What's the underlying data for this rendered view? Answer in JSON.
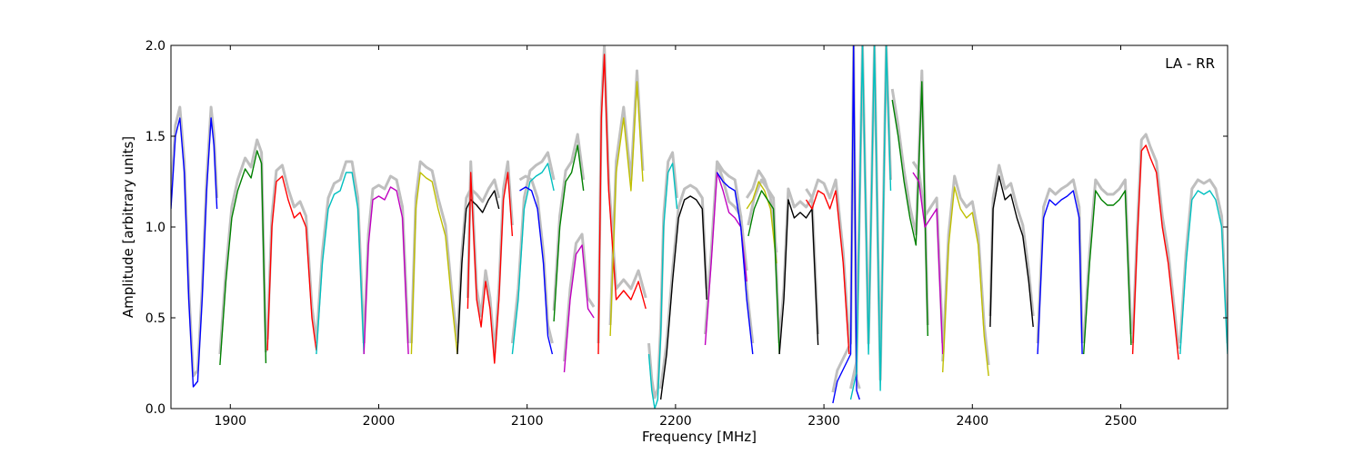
{
  "chart_data": {
    "type": "line",
    "title": "",
    "xlabel": "Frequency [MHz]",
    "ylabel": "Amplitude [arbitrary units]",
    "annotation": "LA - RR",
    "xlim": [
      1860,
      2572
    ],
    "ylim": [
      0.0,
      2.0
    ],
    "xticks": [
      1900,
      2000,
      2100,
      2200,
      2300,
      2400,
      2500
    ],
    "yticks": [
      0.0,
      0.5,
      1.0,
      1.5,
      2.0
    ],
    "xtick_labels": [
      "1900",
      "2000",
      "2100",
      "2200",
      "2300",
      "2400",
      "2500"
    ],
    "ytick_labels": [
      "0.0",
      "0.5",
      "1.0",
      "1.5",
      "2.0"
    ],
    "grid": false,
    "legend": "none",
    "raw_color": "#bfbfbf",
    "series": [
      {
        "color": "#0000ff",
        "x": [
          1860,
          1863,
          1866,
          1869,
          1872,
          1875,
          1878,
          1881,
          1884,
          1887,
          1889,
          1891
        ],
        "y": [
          1.1,
          1.5,
          1.6,
          1.3,
          0.6,
          0.12,
          0.15,
          0.6,
          1.2,
          1.6,
          1.45,
          1.1
        ]
      },
      {
        "color": "#008000",
        "x": [
          1893,
          1897,
          1901,
          1905,
          1910,
          1914,
          1918,
          1921,
          1924
        ],
        "y": [
          0.24,
          0.7,
          1.05,
          1.2,
          1.32,
          1.27,
          1.42,
          1.35,
          0.25
        ]
      },
      {
        "color": "#ff0000",
        "x": [
          1925,
          1928,
          1931,
          1935,
          1939,
          1943,
          1947,
          1951,
          1955,
          1958
        ],
        "y": [
          0.32,
          1.0,
          1.25,
          1.28,
          1.15,
          1.05,
          1.08,
          1.0,
          0.5,
          0.32
        ]
      },
      {
        "color": "#00bfbf",
        "x": [
          1958,
          1962,
          1966,
          1970,
          1974,
          1978,
          1982,
          1986,
          1990
        ],
        "y": [
          0.3,
          0.8,
          1.1,
          1.18,
          1.2,
          1.3,
          1.3,
          1.1,
          0.3
        ]
      },
      {
        "color": "#bf00bf",
        "x": [
          1990,
          1993,
          1996,
          2000,
          2004,
          2008,
          2012,
          2016,
          2020
        ],
        "y": [
          0.3,
          0.9,
          1.15,
          1.17,
          1.15,
          1.22,
          1.2,
          1.05,
          0.3
        ]
      },
      {
        "color": "#bfbf00",
        "x": [
          2022,
          2025,
          2028,
          2032,
          2036,
          2040,
          2045,
          2049,
          2053
        ],
        "y": [
          0.3,
          1.1,
          1.3,
          1.27,
          1.25,
          1.1,
          0.95,
          0.6,
          0.3
        ]
      },
      {
        "color": "#000000",
        "x": [
          2053,
          2056,
          2059,
          2062,
          2066,
          2070,
          2074,
          2078,
          2081
        ],
        "y": [
          0.3,
          0.8,
          1.1,
          1.15,
          1.12,
          1.08,
          1.15,
          1.2,
          1.1
        ]
      },
      {
        "color": "#ff0000",
        "x": [
          2060,
          2062,
          2064,
          2066,
          2069,
          2072,
          2075,
          2078,
          2081,
          2084,
          2087,
          2090
        ],
        "y": [
          0.55,
          1.3,
          0.95,
          0.6,
          0.45,
          0.7,
          0.55,
          0.25,
          0.6,
          1.15,
          1.3,
          0.95
        ]
      },
      {
        "color": "#00bfbf",
        "x": [
          2090,
          2094,
          2098,
          2102,
          2106,
          2110,
          2114,
          2118
        ],
        "y": [
          0.3,
          0.6,
          1.1,
          1.25,
          1.28,
          1.3,
          1.35,
          1.2
        ]
      },
      {
        "color": "#0000ff",
        "x": [
          2095,
          2099,
          2103,
          2107,
          2111,
          2114,
          2117
        ],
        "y": [
          1.2,
          1.22,
          1.2,
          1.1,
          0.8,
          0.4,
          0.3
        ]
      },
      {
        "color": "#008000",
        "x": [
          2118,
          2122,
          2126,
          2130,
          2134,
          2138
        ],
        "y": [
          0.48,
          1.0,
          1.25,
          1.3,
          1.45,
          1.2
        ]
      },
      {
        "color": "#bf00bf",
        "x": [
          2125,
          2129,
          2133,
          2137,
          2141,
          2145
        ],
        "y": [
          0.2,
          0.6,
          0.85,
          0.9,
          0.55,
          0.5
        ]
      },
      {
        "color": "#ff0000",
        "x": [
          2148,
          2150,
          2152,
          2155,
          2160,
          2165,
          2170,
          2175,
          2180
        ],
        "y": [
          0.3,
          1.6,
          1.95,
          1.2,
          0.6,
          0.65,
          0.6,
          0.7,
          0.55
        ]
      },
      {
        "color": "#bfbf00",
        "x": [
          2156,
          2160,
          2165,
          2170,
          2174,
          2178
        ],
        "y": [
          0.4,
          1.3,
          1.6,
          1.2,
          1.8,
          1.25
        ]
      },
      {
        "color": "#00bfbf",
        "x": [
          2182,
          2184,
          2186,
          2188,
          2190,
          2192,
          2195,
          2198,
          2201
        ],
        "y": [
          0.3,
          0.1,
          0.0,
          0.05,
          0.4,
          1.0,
          1.3,
          1.35,
          1.1
        ]
      },
      {
        "color": "#000000",
        "x": [
          2190,
          2194,
          2198,
          2202,
          2206,
          2210,
          2214,
          2218,
          2221
        ],
        "y": [
          0.05,
          0.3,
          0.7,
          1.05,
          1.15,
          1.17,
          1.15,
          1.1,
          0.6
        ]
      },
      {
        "color": "#bf00bf",
        "x": [
          2220,
          2224,
          2228,
          2232,
          2236,
          2240,
          2244,
          2248
        ],
        "y": [
          0.35,
          0.8,
          1.3,
          1.2,
          1.08,
          1.05,
          1.0,
          0.7
        ]
      },
      {
        "color": "#0000ff",
        "x": [
          2228,
          2232,
          2236,
          2240,
          2244,
          2248,
          2252
        ],
        "y": [
          1.3,
          1.25,
          1.22,
          1.2,
          1.0,
          0.6,
          0.3
        ]
      },
      {
        "color": "#bfbf00",
        "x": [
          2248,
          2252,
          2256,
          2260,
          2264,
          2268
        ],
        "y": [
          1.1,
          1.15,
          1.25,
          1.2,
          1.1,
          0.8
        ]
      },
      {
        "color": "#008000",
        "x": [
          2249,
          2253,
          2258,
          2262,
          2266,
          2270
        ],
        "y": [
          0.95,
          1.1,
          1.2,
          1.15,
          1.1,
          0.3
        ]
      },
      {
        "color": "#000000",
        "x": [
          2270,
          2273,
          2276,
          2280,
          2284,
          2288,
          2292,
          2296
        ],
        "y": [
          0.3,
          0.6,
          1.15,
          1.05,
          1.08,
          1.05,
          1.1,
          0.35
        ]
      },
      {
        "color": "#ff0000",
        "x": [
          2288,
          2292,
          2296,
          2300,
          2304,
          2308,
          2313,
          2317
        ],
        "y": [
          1.15,
          1.1,
          1.2,
          1.18,
          1.1,
          1.2,
          0.8,
          0.3
        ]
      },
      {
        "color": "#0000ff",
        "x": [
          2306,
          2309,
          2312,
          2315,
          2318,
          2320,
          2322,
          2324
        ],
        "y": [
          0.03,
          0.15,
          0.2,
          0.25,
          0.3,
          2.0,
          0.1,
          0.05
        ]
      },
      {
        "color": "#00bfbf",
        "x": [
          2318,
          2322,
          2326,
          2330,
          2334,
          2338,
          2342,
          2345
        ],
        "y": [
          0.05,
          0.2,
          2.0,
          0.3,
          2.0,
          0.1,
          2.0,
          1.2
        ]
      },
      {
        "color": "#008000",
        "x": [
          2346,
          2350,
          2354,
          2358,
          2362,
          2366,
          2370
        ],
        "y": [
          1.7,
          1.5,
          1.25,
          1.05,
          0.9,
          1.8,
          0.4
        ]
      },
      {
        "color": "#bf00bf",
        "x": [
          2360,
          2364,
          2368,
          2372,
          2376,
          2380
        ],
        "y": [
          1.3,
          1.25,
          1.0,
          1.05,
          1.1,
          0.3
        ]
      },
      {
        "color": "#bfbf00",
        "x": [
          2380,
          2384,
          2388,
          2392,
          2396,
          2400,
          2404,
          2408,
          2411
        ],
        "y": [
          0.2,
          0.9,
          1.22,
          1.1,
          1.05,
          1.08,
          0.9,
          0.4,
          0.18
        ]
      },
      {
        "color": "#000000",
        "x": [
          2412,
          2414,
          2418,
          2422,
          2426,
          2430,
          2434,
          2438,
          2441
        ],
        "y": [
          0.45,
          1.1,
          1.28,
          1.15,
          1.18,
          1.05,
          0.95,
          0.7,
          0.45
        ]
      },
      {
        "color": "#0000ff",
        "x": [
          2444,
          2448,
          2452,
          2456,
          2460,
          2464,
          2468,
          2472,
          2474
        ],
        "y": [
          0.3,
          1.05,
          1.15,
          1.12,
          1.15,
          1.17,
          1.2,
          1.05,
          0.3
        ]
      },
      {
        "color": "#008000",
        "x": [
          2475,
          2479,
          2483,
          2487,
          2491,
          2495,
          2499,
          2503,
          2507
        ],
        "y": [
          0.3,
          0.8,
          1.2,
          1.15,
          1.12,
          1.12,
          1.15,
          1.2,
          0.35
        ]
      },
      {
        "color": "#ff0000",
        "x": [
          2508,
          2511,
          2514,
          2517,
          2520,
          2524,
          2528,
          2532,
          2536,
          2539
        ],
        "y": [
          0.3,
          0.9,
          1.42,
          1.45,
          1.38,
          1.3,
          1.0,
          0.8,
          0.5,
          0.27
        ]
      },
      {
        "color": "#00bfbf",
        "x": [
          2540,
          2544,
          2548,
          2552,
          2556,
          2560,
          2564,
          2568,
          2572
        ],
        "y": [
          0.3,
          0.8,
          1.15,
          1.2,
          1.18,
          1.2,
          1.15,
          1.0,
          0.3
        ]
      }
    ]
  }
}
